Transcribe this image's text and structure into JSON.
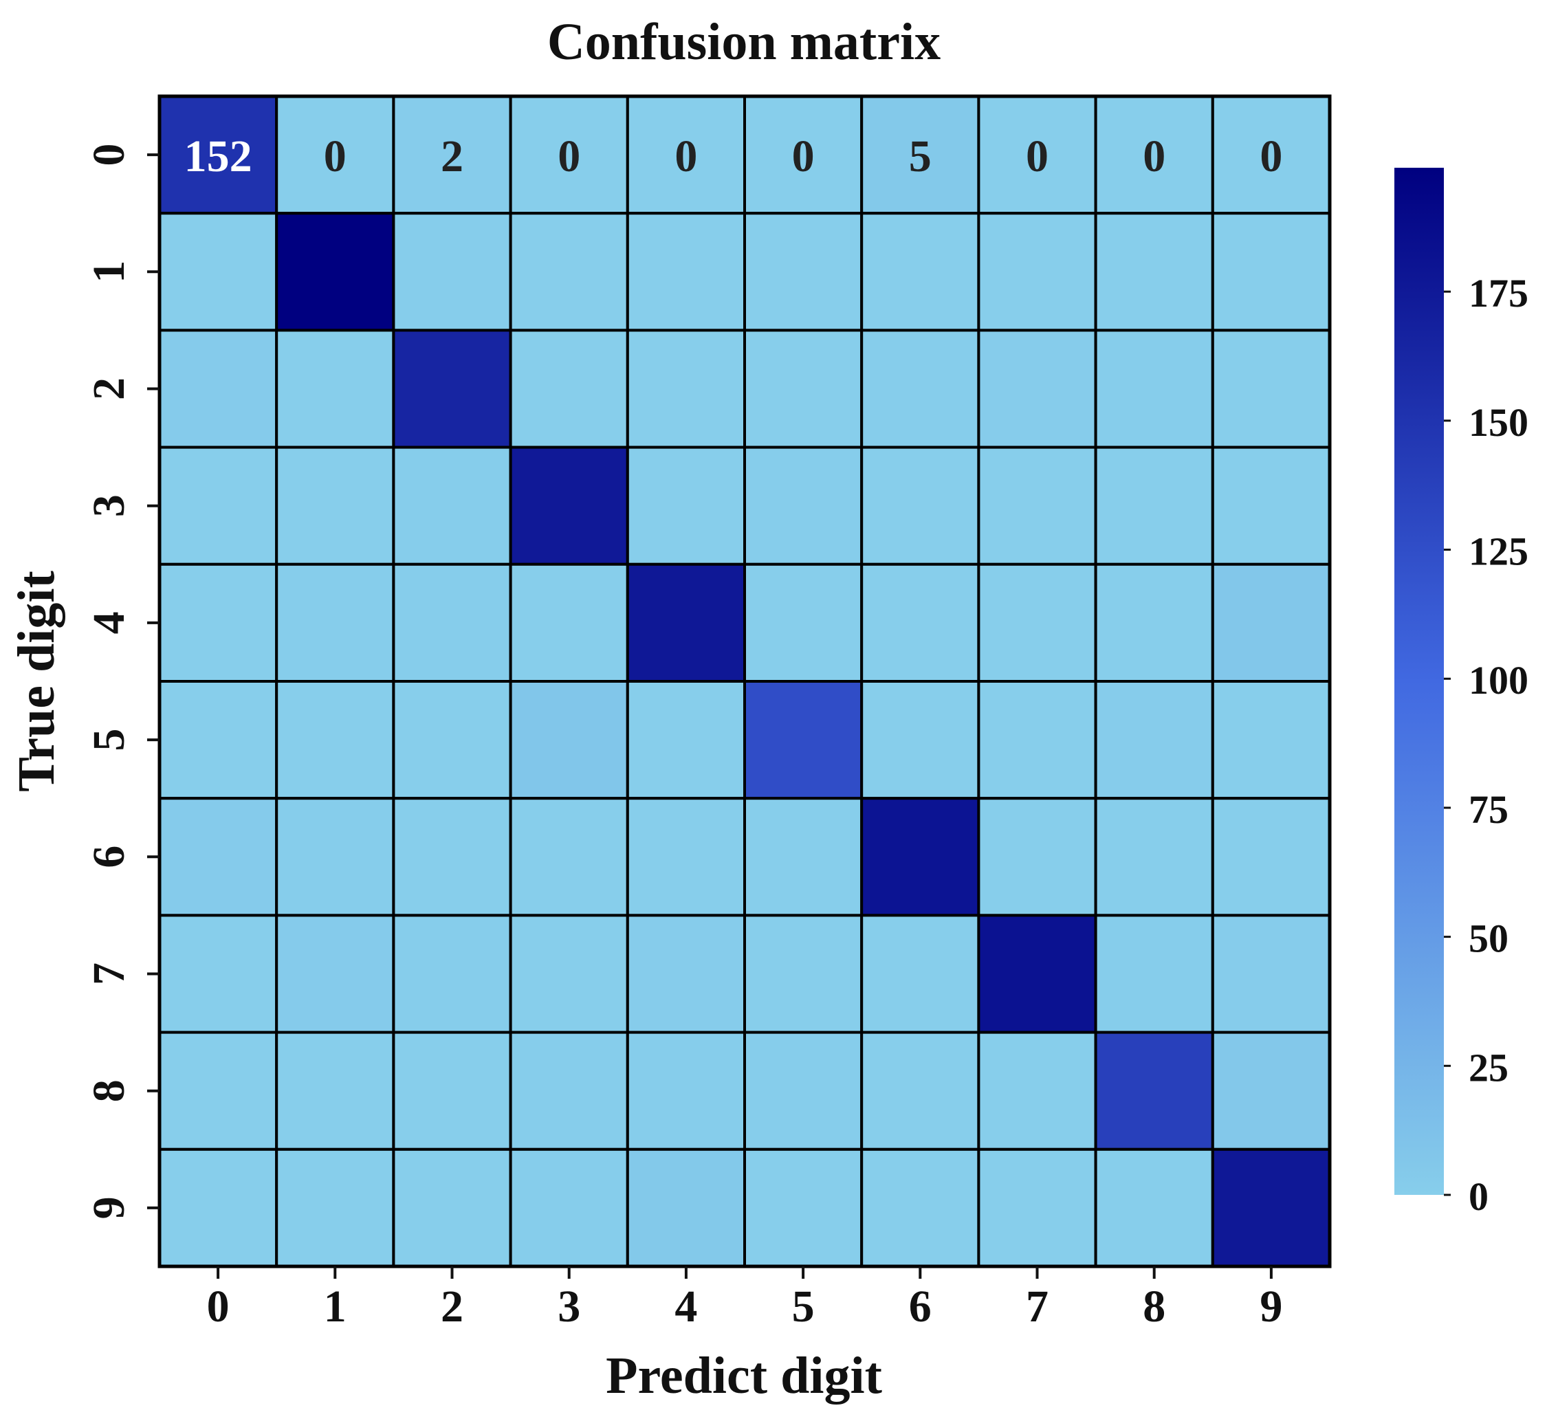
{
  "chart_data": {
    "type": "heatmap",
    "title": "Confusion matrix",
    "xlabel": "Predict digit",
    "ylabel": "True digit",
    "x_categories": [
      "0",
      "1",
      "2",
      "3",
      "4",
      "5",
      "6",
      "7",
      "8",
      "9"
    ],
    "y_categories": [
      "0",
      "1",
      "2",
      "3",
      "4",
      "5",
      "6",
      "7",
      "8",
      "9"
    ],
    "values": [
      [
        152,
        0,
        2,
        0,
        0,
        0,
        5,
        0,
        0,
        0
      ],
      [
        0,
        199,
        1,
        0,
        0,
        0,
        0,
        0,
        0,
        0
      ],
      [
        3,
        0,
        164,
        0,
        0,
        0,
        1,
        2,
        1,
        0
      ],
      [
        0,
        0,
        1,
        175,
        0,
        1,
        0,
        0,
        0,
        0
      ],
      [
        0,
        1,
        1,
        0,
        176,
        0,
        0,
        0,
        0,
        7
      ],
      [
        0,
        0,
        0,
        8,
        0,
        126,
        0,
        0,
        2,
        0
      ],
      [
        3,
        1,
        0,
        0,
        0,
        0,
        180,
        0,
        0,
        0
      ],
      [
        0,
        3,
        1,
        0,
        2,
        0,
        0,
        182,
        1,
        2
      ],
      [
        0,
        0,
        0,
        1,
        1,
        1,
        0,
        0,
        138,
        6
      ],
      [
        0,
        0,
        0,
        1,
        5,
        0,
        0,
        0,
        0,
        176
      ]
    ],
    "annotated_row": 0,
    "colorbar": {
      "min": 0,
      "max": 199,
      "ticks": [
        0,
        25,
        50,
        75,
        100,
        125,
        150,
        175
      ],
      "tick_labels": [
        "0",
        "25",
        "50",
        "75",
        "100",
        "125",
        "150",
        "175"
      ],
      "color_low": "#87CEEB",
      "color_mid": "#4169E1",
      "color_high": "#000080"
    },
    "grid": true,
    "legend": "colorbar-right"
  },
  "colors": {
    "cell_border": "#000000",
    "text_dark": "#222222",
    "text_light": "#ffffff"
  }
}
